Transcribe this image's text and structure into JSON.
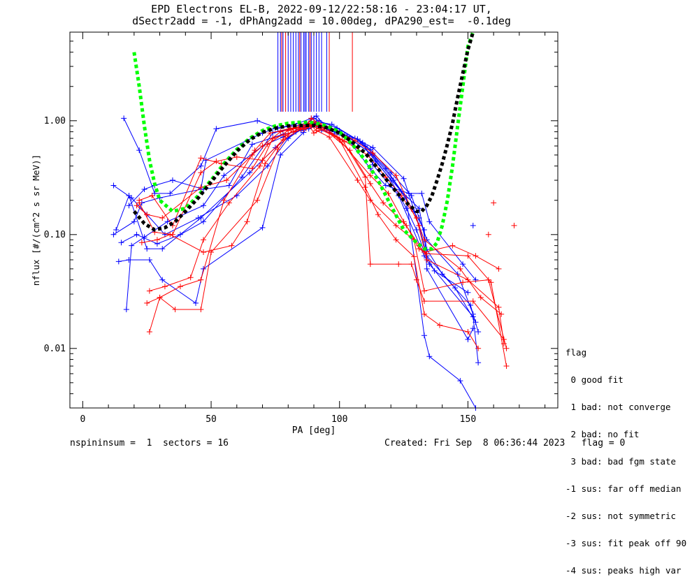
{
  "title_line1": "EPD Electrons EL-B, 2022-09-12/22:58:16 - 23:04:17 UT,",
  "title_line2": "dSectr2add = -1, dPhAng2add = 10.00deg, dPA290_est=  -0.1deg",
  "legend": {
    "heading": "flag",
    "items": [
      " 0 good fit",
      " 1 bad: not converge",
      " 2 bad: no fit",
      " 3 bad: bad fgm state",
      "-1 sus: far off median",
      "-2 sus: not symmetric",
      "-3 sus: fit peak off 90",
      "-4 sus: peaks high var"
    ]
  },
  "footer": {
    "left": "nspininsum =  1  sectors = 16",
    "right": "Created: Fri Sep  8 06:36:44 2023   flag = 0"
  },
  "colors": {
    "blue": "#0000ff",
    "red": "#ff0000",
    "green": "#00ff00",
    "black": "#000000"
  },
  "chart_data": {
    "type": "line",
    "xlabel": "PA [deg]",
    "ylabel": "nflux [#/(cm^2 s sr MeV)]",
    "xlim": [
      -5,
      185
    ],
    "ylim": [
      0.003,
      6.0
    ],
    "yscale": "log",
    "xticks": [
      0,
      50,
      100,
      150
    ],
    "yticks": [
      {
        "value": 0.01,
        "label": "0.01"
      },
      {
        "value": 0.1,
        "label": "0.10"
      },
      {
        "value": 1.0,
        "label": "1.00"
      }
    ],
    "fit_curves": [
      {
        "color": "green",
        "x": [
          20,
          22,
          24,
          26,
          28,
          30,
          35,
          40,
          45,
          50,
          55,
          60,
          65,
          70,
          75,
          80,
          85,
          90,
          95,
          100,
          105,
          110,
          115,
          120,
          125,
          130,
          133,
          136,
          138,
          140,
          142,
          144,
          146,
          148,
          150,
          152
        ],
        "y": [
          4.0,
          2.0,
          0.9,
          0.45,
          0.28,
          0.2,
          0.16,
          0.17,
          0.22,
          0.3,
          0.42,
          0.56,
          0.7,
          0.82,
          0.9,
          0.95,
          0.97,
          0.96,
          0.9,
          0.8,
          0.62,
          0.45,
          0.3,
          0.18,
          0.11,
          0.085,
          0.075,
          0.075,
          0.085,
          0.12,
          0.2,
          0.4,
          0.9,
          2.0,
          4.5,
          8.0
        ]
      },
      {
        "color": "black",
        "x": [
          20,
          24,
          28,
          32,
          36,
          40,
          45,
          50,
          55,
          60,
          65,
          70,
          75,
          80,
          85,
          90,
          95,
          100,
          105,
          110,
          115,
          120,
          125,
          130,
          132,
          134,
          136,
          138,
          140,
          142,
          144,
          146,
          148,
          150,
          152
        ],
        "y": [
          0.16,
          0.125,
          0.11,
          0.115,
          0.13,
          0.16,
          0.21,
          0.29,
          0.4,
          0.54,
          0.68,
          0.79,
          0.86,
          0.9,
          0.91,
          0.91,
          0.87,
          0.78,
          0.65,
          0.52,
          0.38,
          0.27,
          0.2,
          0.16,
          0.16,
          0.18,
          0.22,
          0.3,
          0.42,
          0.62,
          0.95,
          1.6,
          2.6,
          4.2,
          6.5
        ]
      }
    ],
    "series": [
      {
        "color": "blue",
        "x": [
          12,
          20,
          23,
          30,
          46,
          48,
          70,
          75,
          82,
          88,
          90,
          92,
          100,
          112,
          120,
          126,
          130,
          133,
          137,
          150
        ],
        "y": [
          0.1,
          0.13,
          0.19,
          0.21,
          0.25,
          0.45,
          0.78,
          0.86,
          0.9,
          0.93,
          0.92,
          0.89,
          0.81,
          0.52,
          0.3,
          0.17,
          0.11,
          0.07,
          0.048,
          0.031
        ]
      },
      {
        "color": "blue",
        "x": [
          16,
          22,
          28,
          34,
          46,
          52,
          68,
          76,
          84,
          89,
          91,
          96,
          106,
          113,
          125,
          131,
          134,
          145,
          153
        ],
        "y": [
          1.05,
          0.55,
          0.23,
          0.23,
          0.4,
          0.85,
          1.0,
          0.86,
          0.95,
          1.05,
          1.1,
          0.82,
          0.7,
          0.58,
          0.31,
          0.12,
          0.065,
          0.034,
          0.017
        ]
      },
      {
        "color": "blue",
        "x": [
          17,
          19,
          24,
          33,
          47,
          55,
          70,
          78,
          85,
          90,
          92,
          99,
          109,
          118,
          126,
          133,
          135,
          147,
          153
        ],
        "y": [
          0.022,
          0.08,
          0.095,
          0.13,
          0.18,
          0.33,
          0.6,
          0.72,
          0.87,
          1.05,
          1.0,
          0.86,
          0.64,
          0.38,
          0.21,
          0.013,
          0.0085,
          0.0052,
          0.0025
        ]
      },
      {
        "color": "blue",
        "x": [
          14,
          18,
          26,
          31,
          44,
          47,
          70,
          77,
          86,
          89,
          93,
          103,
          110,
          113,
          123,
          133,
          135,
          152,
          154
        ],
        "y": [
          0.058,
          0.06,
          0.06,
          0.04,
          0.025,
          0.05,
          0.115,
          0.5,
          0.79,
          0.98,
          0.82,
          0.72,
          0.6,
          0.41,
          0.22,
          0.065,
          0.055,
          0.019,
          0.0075
        ]
      },
      {
        "color": "blue",
        "x": [
          12,
          19,
          25,
          32,
          45,
          60,
          72,
          80,
          86,
          90,
          95,
          104,
          113,
          121,
          129,
          133,
          134,
          150,
          152
        ],
        "y": [
          0.27,
          0.21,
          0.15,
          0.1,
          0.14,
          0.22,
          0.4,
          0.7,
          0.87,
          0.95,
          0.87,
          0.7,
          0.5,
          0.3,
          0.16,
          0.11,
          0.05,
          0.012,
          0.015
        ]
      },
      {
        "color": "blue",
        "x": [
          15,
          21,
          29,
          38,
          47,
          62,
          74,
          84,
          88,
          91,
          97,
          108,
          114,
          124,
          131,
          134,
          140,
          151,
          154
        ],
        "y": [
          0.085,
          0.1,
          0.083,
          0.1,
          0.13,
          0.32,
          0.78,
          0.88,
          0.9,
          0.98,
          0.93,
          0.66,
          0.44,
          0.24,
          0.17,
          0.074,
          0.045,
          0.024,
          0.014
        ]
      },
      {
        "color": "blue",
        "x": [
          13,
          18,
          25,
          31,
          46,
          65,
          75,
          83,
          88,
          90,
          94,
          102,
          112,
          118,
          127,
          132,
          135,
          148,
          153
        ],
        "y": [
          0.11,
          0.22,
          0.075,
          0.075,
          0.14,
          0.35,
          0.58,
          0.8,
          0.88,
          0.92,
          0.87,
          0.75,
          0.38,
          0.27,
          0.23,
          0.23,
          0.13,
          0.055,
          0.04
        ]
      },
      {
        "color": "blue",
        "x": [
          18,
          24,
          28,
          35,
          47,
          57,
          66,
          78,
          85,
          88,
          91,
          98,
          107,
          112,
          120,
          128,
          131,
          134,
          146,
          152
        ],
        "y": [
          0.18,
          0.25,
          0.27,
          0.3,
          0.25,
          0.27,
          0.62,
          0.76,
          0.82,
          0.85,
          0.9,
          0.8,
          0.69,
          0.56,
          0.35,
          0.22,
          0.14,
          0.09,
          0.045,
          0.02
        ]
      },
      {
        "color": "red",
        "x": [
          26,
          30,
          38,
          46,
          55,
          67,
          73,
          81,
          87,
          89,
          92,
          100,
          110,
          115,
          122,
          129,
          133,
          139,
          150,
          154
        ],
        "y": [
          0.014,
          0.028,
          0.035,
          0.04,
          0.2,
          0.55,
          0.78,
          0.86,
          0.9,
          1.05,
          0.95,
          0.68,
          0.26,
          0.15,
          0.09,
          0.064,
          0.02,
          0.016,
          0.014,
          0.01
        ]
      },
      {
        "color": "red",
        "x": [
          25,
          30,
          36,
          46,
          50,
          68,
          76,
          82,
          86,
          90,
          93,
          101,
          110,
          112,
          123,
          128,
          130,
          133,
          152,
          164
        ],
        "y": [
          0.025,
          0.028,
          0.022,
          0.022,
          0.07,
          0.2,
          0.56,
          0.85,
          0.84,
          0.97,
          0.9,
          0.68,
          0.32,
          0.055,
          0.055,
          0.055,
          0.04,
          0.026,
          0.026,
          0.012
        ]
      },
      {
        "color": "red",
        "x": [
          22,
          27,
          35,
          46,
          54,
          66,
          72,
          80,
          86,
          88,
          91,
          96,
          107,
          112,
          122,
          129,
          133,
          148,
          158,
          165
        ],
        "y": [
          0.2,
          0.22,
          0.12,
          0.47,
          0.42,
          0.38,
          0.62,
          0.82,
          0.9,
          0.95,
          0.82,
          0.72,
          0.3,
          0.2,
          0.12,
          0.09,
          0.032,
          0.038,
          0.04,
          0.01
        ]
      },
      {
        "color": "red",
        "x": [
          22,
          28,
          35,
          46,
          52,
          60,
          70,
          78,
          85,
          89,
          92,
          102,
          111,
          118,
          124,
          130,
          134,
          150,
          162,
          164
        ],
        "y": [
          0.19,
          0.105,
          0.1,
          0.35,
          0.44,
          0.48,
          0.45,
          0.68,
          0.85,
          0.9,
          0.85,
          0.66,
          0.5,
          0.32,
          0.22,
          0.14,
          0.06,
          0.04,
          0.023,
          0.011
        ]
      },
      {
        "color": "red",
        "x": [
          23,
          29,
          34,
          47,
          58,
          64,
          71,
          79,
          84,
          88,
          90,
          96,
          106,
          113,
          122,
          131,
          133,
          147,
          155,
          163
        ],
        "y": [
          0.085,
          0.09,
          0.1,
          0.07,
          0.08,
          0.13,
          0.42,
          0.74,
          0.85,
          0.92,
          0.78,
          0.88,
          0.67,
          0.52,
          0.33,
          0.12,
          0.09,
          0.05,
          0.028,
          0.02
        ]
      },
      {
        "color": "red",
        "x": [
          26,
          32,
          42,
          47,
          57,
          69,
          74,
          82,
          87,
          89,
          92,
          104,
          112,
          117,
          126,
          131,
          134,
          150,
          159,
          165
        ],
        "y": [
          0.032,
          0.035,
          0.042,
          0.09,
          0.19,
          0.4,
          0.7,
          0.8,
          0.86,
          0.9,
          0.92,
          0.55,
          0.28,
          0.19,
          0.12,
          0.075,
          0.068,
          0.065,
          0.038,
          0.007
        ]
      },
      {
        "color": "red",
        "x": [
          21,
          25,
          31,
          46,
          56,
          66,
          70,
          77,
          84,
          89,
          91,
          99,
          112,
          119,
          125,
          131,
          133,
          144,
          153,
          162
        ],
        "y": [
          0.18,
          0.15,
          0.14,
          0.26,
          0.3,
          0.5,
          0.6,
          0.8,
          0.88,
          0.93,
          0.9,
          0.72,
          0.33,
          0.23,
          0.13,
          0.08,
          0.07,
          0.08,
          0.065,
          0.05
        ]
      }
    ],
    "isolated_points": [
      {
        "color": "red",
        "x": 160,
        "y": 0.19
      },
      {
        "color": "red",
        "x": 168,
        "y": 0.12
      },
      {
        "color": "red",
        "x": 158,
        "y": 0.1
      },
      {
        "color": "blue",
        "x": 152,
        "y": 0.12
      }
    ],
    "peak_markers": [
      {
        "color": "blue",
        "x": [
          76,
          77,
          78,
          80,
          81,
          82,
          83,
          84,
          85,
          86,
          86.5,
          87,
          88,
          89,
          90,
          91,
          92,
          93,
          95
        ]
      },
      {
        "color": "red",
        "x": [
          77.5,
          79,
          84.5,
          88.5,
          96,
          105
        ]
      }
    ]
  }
}
